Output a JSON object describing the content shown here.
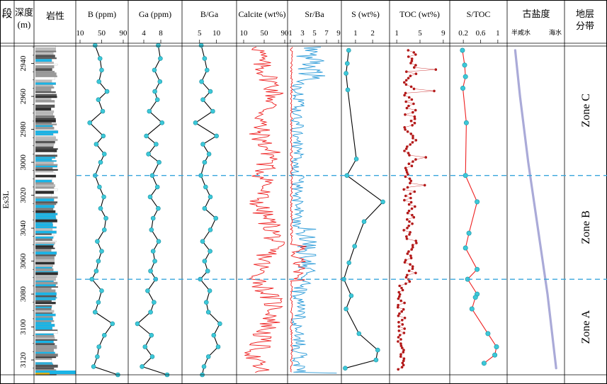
{
  "chart_data": {
    "type": "line",
    "title": "",
    "depth_axis": {
      "label_cn": "深度",
      "unit": "(m)",
      "ticks": [
        "2940",
        "2960",
        "2980",
        "3000",
        "3020",
        "3040",
        "3060",
        "3080",
        "3100",
        "3120"
      ],
      "range": [
        2929,
        3129
      ]
    },
    "columns": {
      "stage": {
        "header": "段",
        "value": "Es3L"
      },
      "lithology": {
        "header": "岩性"
      },
      "paleo": {
        "header": "古盐度",
        "left_label": "半咸水",
        "right_label": "海水"
      },
      "zones": {
        "header_1": "地层",
        "header_2": "分带"
      }
    },
    "zones": [
      {
        "name": "Zone C",
        "top": 2929,
        "bottom": 3008
      },
      {
        "name": "Zone B",
        "top": 3008,
        "bottom": 3071
      },
      {
        "name": "Zone A",
        "top": 3071,
        "bottom": 3129
      }
    ],
    "zone_boundaries": [
      3008,
      3071
    ],
    "series": [
      {
        "name": "B (ppm)",
        "ticks": [
          "10",
          "50",
          "90"
        ],
        "xlim": [
          10,
          90
        ],
        "color": "#000000",
        "marker_color": "#3cc8d8",
        "depth": [
          2929,
          2937,
          2944,
          2951,
          2957,
          2962,
          2969,
          2976,
          2984,
          2989,
          2995,
          3000,
          3008,
          3015,
          3021,
          3028,
          3034,
          3041,
          3048,
          3054,
          3060,
          3066,
          3071,
          3078,
          3085,
          3091,
          3098,
          3105,
          3112,
          3118,
          3124,
          3129
        ],
        "values": [
          38,
          47,
          50,
          45,
          60,
          44,
          52,
          28,
          53,
          40,
          55,
          48,
          38,
          46,
          54,
          48,
          58,
          55,
          42,
          50,
          44,
          40,
          32,
          50,
          44,
          38,
          70,
          55,
          45,
          42,
          35,
          80
        ]
      },
      {
        "name": "Ga (ppm)",
        "ticks": [
          "4",
          "8"
        ],
        "xlim": [
          1.5,
          11
        ],
        "color": "#000000",
        "marker_color": "#3cc8d8",
        "depth": [
          2929,
          2937,
          2944,
          2951,
          2957,
          2962,
          2969,
          2976,
          2984,
          2989,
          2995,
          3000,
          3008,
          3015,
          3021,
          3028,
          3034,
          3041,
          3048,
          3054,
          3060,
          3066,
          3071,
          3078,
          3085,
          3091,
          3098,
          3105,
          3112,
          3118,
          3124,
          3129
        ],
        "values": [
          7.4,
          7.9,
          6.5,
          7.8,
          6.6,
          7.2,
          5.3,
          8.3,
          4.6,
          6.9,
          5.1,
          7.6,
          6.0,
          7.2,
          5.5,
          7.4,
          6.2,
          5.8,
          7.5,
          6.2,
          6.6,
          5.6,
          6.8,
          4.9,
          6.4,
          5.6,
          2.5,
          5.8,
          4.3,
          6.0,
          3.6,
          9.5
        ]
      },
      {
        "name": "B/Ga",
        "ticks": [
          "5",
          "10"
        ],
        "xlim": [
          1.5,
          13
        ],
        "color": "#000000",
        "marker_color": "#3cc8d8",
        "depth": [
          2929,
          2937,
          2944,
          2951,
          2957,
          2962,
          2969,
          2976,
          2984,
          2989,
          2995,
          3000,
          3008,
          3015,
          3021,
          3028,
          3034,
          3041,
          3048,
          3054,
          3060,
          3066,
          3071,
          3078,
          3085,
          3091,
          3098,
          3105,
          3112,
          3118,
          3124,
          3129
        ],
        "values": [
          5.5,
          6.5,
          7.2,
          5.6,
          8.2,
          6.0,
          8.9,
          3.8,
          10.0,
          6.0,
          7.8,
          6.5,
          5.4,
          6.8,
          8.2,
          6.5,
          9.8,
          8.2,
          5.9,
          8.1,
          6.5,
          7.4,
          5.2,
          8.0,
          7.0,
          7.6,
          11.0,
          9.2,
          10.5,
          7.6,
          6.3,
          5.8
        ]
      },
      {
        "name": "Calcite (wt%)",
        "ticks": [
          "10",
          "50",
          "90"
        ],
        "xlim": [
          10,
          90
        ],
        "color": "#ee2020"
      },
      {
        "name": "Sr/Ba",
        "ticks": [
          "1",
          "3",
          "5",
          "7",
          "9"
        ],
        "xlim": [
          1,
          9
        ],
        "color": "#2a9ad8",
        "secondary_color": "#ee2020"
      },
      {
        "name": "S (wt%)",
        "ticks": [
          "1",
          "2"
        ],
        "xlim": [
          0.3,
          2.7
        ],
        "color": "#000000",
        "marker_color": "#3cc8d8",
        "depth": [
          2932,
          2940,
          2946,
          2956,
          2998,
          3008,
          3024,
          3036,
          3051,
          3061,
          3071,
          3081,
          3089,
          3104,
          3114,
          3120,
          3125
        ],
        "values": [
          0.6,
          0.52,
          0.45,
          0.55,
          1.05,
          0.5,
          2.6,
          1.5,
          0.95,
          0.62,
          0.32,
          0.75,
          0.45,
          1.2,
          2.3,
          2.2,
          0.4
        ]
      },
      {
        "name": "TOC (wt%)",
        "ticks": [
          "1",
          "5",
          "9"
        ],
        "xlim": [
          0.5,
          9.5
        ],
        "color": "#8b1a1a",
        "marker_color": "#b01515"
      },
      {
        "name": "S/TOC",
        "ticks": [
          "0.2",
          "0.6",
          "1"
        ],
        "xlim": [
          0.05,
          1.15
        ],
        "color": "#ee2020",
        "marker_color": "#3cc8d8",
        "depth": [
          2932,
          2941,
          2948,
          2955,
          2976,
          3008,
          3024,
          3043,
          3052,
          3065,
          3071,
          3080,
          3082,
          3089,
          3104,
          3112,
          3117,
          3122
        ],
        "values": [
          0.18,
          0.23,
          0.25,
          0.19,
          0.27,
          0.25,
          0.52,
          0.33,
          0.25,
          0.52,
          0.3,
          0.52,
          0.48,
          0.4,
          0.77,
          0.97,
          0.93,
          0.68
        ]
      },
      {
        "name": "古盐度 trend",
        "color": "#aaaad8",
        "depth": [
          2932,
          2960,
          3000,
          3040,
          3080,
          3125
        ],
        "values": [
          0.05,
          0.15,
          0.32,
          0.52,
          0.72,
          0.9
        ]
      }
    ]
  }
}
